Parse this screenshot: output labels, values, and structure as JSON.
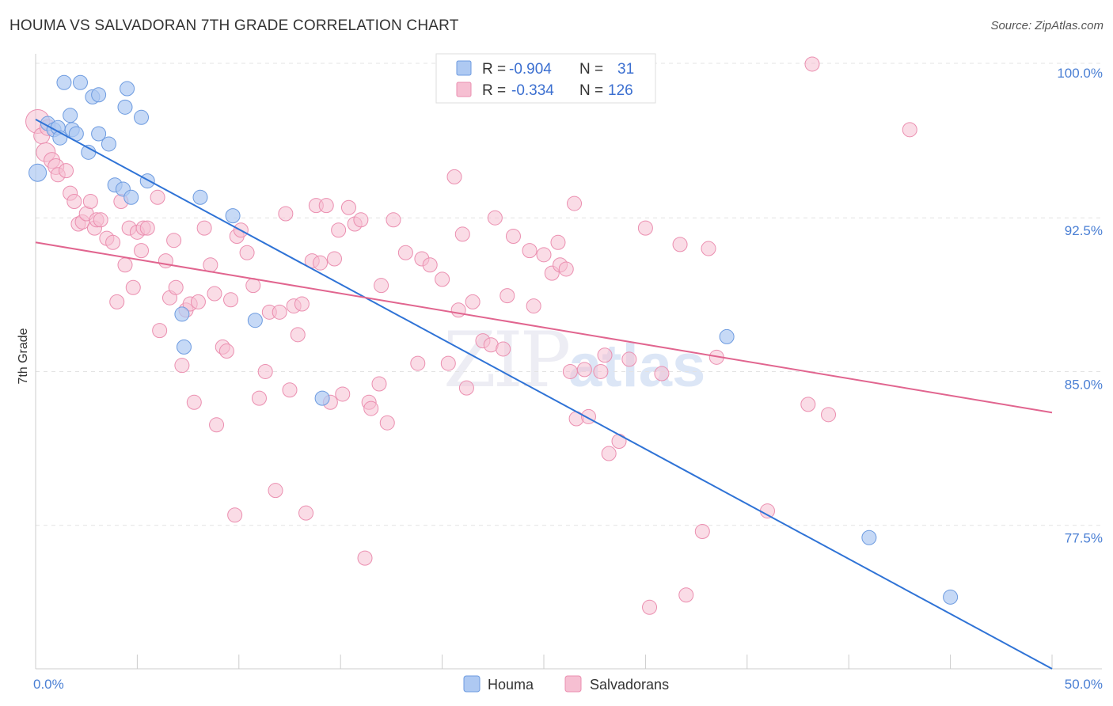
{
  "title": "HOUMA VS SALVADORAN 7TH GRADE CORRELATION CHART",
  "source": "Source: ZipAtlas.com",
  "colors": {
    "houma_fill": "#aec9f2",
    "houma_stroke": "#6d9be0",
    "houma_line": "#2f73d6",
    "salv_fill": "#f6bfd2",
    "salv_stroke": "#eb8fb0",
    "salv_line": "#e1658f",
    "tick_label": "#4a7fd4",
    "grid": "#e3e3e3"
  },
  "legend": {
    "rows": [
      {
        "r_label": "R =",
        "r_value": "-0.904",
        "n_label": "N =",
        "n_value": "31"
      },
      {
        "r_label": "R =",
        "r_value": "-0.334",
        "n_label": "N =",
        "n_value": "126"
      }
    ]
  },
  "bottom_legend": [
    "Houma",
    "Salvadorans"
  ],
  "chart_data": {
    "type": "scatter",
    "title": "HOUMA VS SALVADORAN 7TH GRADE CORRELATION CHART",
    "xlabel": "",
    "ylabel": "7th Grade",
    "xlim": [
      0,
      50
    ],
    "ylim": [
      70.5,
      100.5
    ],
    "x_tick_labels": [
      "0.0%",
      "50.0%"
    ],
    "y_ticks": [
      77.5,
      85.0,
      92.5,
      100.0
    ],
    "y_tick_labels": [
      "77.5%",
      "85.0%",
      "92.5%",
      "100.0%"
    ],
    "grid": true,
    "legend_position": "top-center",
    "series": [
      {
        "name": "Houma",
        "r": -0.904,
        "n": 31,
        "trend": [
          [
            0,
            97.3
          ],
          [
            50,
            70.5
          ]
        ],
        "points": [
          [
            0.1,
            94.7
          ],
          [
            0.6,
            97.1
          ],
          [
            0.9,
            96.8
          ],
          [
            1.1,
            96.9
          ],
          [
            1.2,
            96.4
          ],
          [
            1.4,
            99.1
          ],
          [
            1.7,
            97.5
          ],
          [
            1.8,
            96.8
          ],
          [
            2.0,
            96.6
          ],
          [
            2.2,
            99.1
          ],
          [
            2.6,
            95.7
          ],
          [
            2.8,
            98.4
          ],
          [
            3.1,
            98.5
          ],
          [
            3.1,
            96.6
          ],
          [
            3.6,
            96.1
          ],
          [
            3.9,
            94.1
          ],
          [
            4.3,
            93.9
          ],
          [
            4.4,
            97.9
          ],
          [
            4.5,
            98.8
          ],
          [
            4.7,
            93.5
          ],
          [
            5.2,
            97.4
          ],
          [
            5.5,
            94.3
          ],
          [
            7.2,
            87.8
          ],
          [
            7.3,
            86.2
          ],
          [
            8.1,
            93.5
          ],
          [
            9.7,
            92.6
          ],
          [
            10.8,
            87.5
          ],
          [
            14.1,
            83.7
          ],
          [
            34.0,
            86.7
          ],
          [
            41.0,
            76.9
          ],
          [
            45.0,
            74.0
          ]
        ]
      },
      {
        "name": "Salvadorans",
        "r": -0.334,
        "n": 126,
        "trend": [
          [
            0,
            91.3
          ],
          [
            50,
            83.0
          ]
        ],
        "points": [
          [
            0.1,
            97.2
          ],
          [
            0.3,
            96.5
          ],
          [
            0.5,
            95.7
          ],
          [
            0.6,
            96.9
          ],
          [
            0.8,
            95.3
          ],
          [
            1.0,
            95.0
          ],
          [
            1.1,
            94.6
          ],
          [
            1.5,
            94.8
          ],
          [
            1.7,
            93.7
          ],
          [
            1.9,
            93.3
          ],
          [
            2.1,
            92.2
          ],
          [
            2.3,
            92.3
          ],
          [
            2.5,
            92.7
          ],
          [
            2.7,
            93.3
          ],
          [
            2.9,
            92.0
          ],
          [
            3.0,
            92.4
          ],
          [
            3.2,
            92.4
          ],
          [
            3.5,
            91.5
          ],
          [
            3.8,
            91.3
          ],
          [
            4.0,
            88.4
          ],
          [
            4.2,
            93.3
          ],
          [
            4.4,
            90.2
          ],
          [
            4.6,
            92.0
          ],
          [
            4.8,
            89.1
          ],
          [
            5.0,
            91.8
          ],
          [
            5.2,
            90.9
          ],
          [
            5.3,
            92.0
          ],
          [
            5.5,
            92.0
          ],
          [
            6.0,
            93.5
          ],
          [
            6.1,
            87.0
          ],
          [
            6.4,
            90.4
          ],
          [
            6.6,
            88.6
          ],
          [
            6.8,
            91.4
          ],
          [
            6.9,
            89.1
          ],
          [
            7.2,
            85.3
          ],
          [
            7.4,
            88.0
          ],
          [
            7.6,
            88.3
          ],
          [
            7.8,
            83.5
          ],
          [
            8.0,
            88.4
          ],
          [
            8.3,
            92.0
          ],
          [
            8.6,
            90.2
          ],
          [
            8.8,
            88.8
          ],
          [
            8.9,
            82.4
          ],
          [
            9.2,
            86.2
          ],
          [
            9.4,
            86.0
          ],
          [
            9.6,
            88.5
          ],
          [
            9.8,
            78.0
          ],
          [
            9.9,
            91.6
          ],
          [
            10.1,
            91.9
          ],
          [
            10.4,
            90.8
          ],
          [
            10.7,
            89.2
          ],
          [
            11.0,
            83.7
          ],
          [
            11.3,
            85.0
          ],
          [
            11.5,
            87.9
          ],
          [
            11.8,
            79.2
          ],
          [
            12.0,
            87.9
          ],
          [
            12.3,
            92.7
          ],
          [
            12.5,
            84.1
          ],
          [
            12.7,
            88.2
          ],
          [
            12.9,
            86.8
          ],
          [
            13.1,
            88.3
          ],
          [
            13.3,
            78.1
          ],
          [
            13.6,
            90.4
          ],
          [
            13.8,
            93.1
          ],
          [
            14.0,
            90.3
          ],
          [
            14.3,
            93.1
          ],
          [
            14.5,
            83.5
          ],
          [
            14.7,
            90.5
          ],
          [
            14.9,
            91.9
          ],
          [
            15.1,
            83.9
          ],
          [
            15.4,
            93.0
          ],
          [
            15.7,
            92.2
          ],
          [
            16.0,
            92.4
          ],
          [
            16.2,
            75.9
          ],
          [
            16.4,
            83.5
          ],
          [
            16.5,
            83.2
          ],
          [
            16.9,
            84.4
          ],
          [
            17.0,
            89.2
          ],
          [
            17.3,
            82.5
          ],
          [
            17.6,
            92.4
          ],
          [
            18.2,
            90.8
          ],
          [
            18.8,
            85.4
          ],
          [
            19.0,
            90.5
          ],
          [
            19.4,
            90.2
          ],
          [
            20.0,
            89.5
          ],
          [
            20.3,
            85.4
          ],
          [
            20.6,
            94.5
          ],
          [
            20.8,
            88.0
          ],
          [
            21.0,
            91.7
          ],
          [
            21.2,
            84.2
          ],
          [
            21.5,
            88.4
          ],
          [
            22.0,
            86.5
          ],
          [
            22.4,
            86.3
          ],
          [
            22.6,
            92.5
          ],
          [
            23.0,
            86.1
          ],
          [
            23.2,
            88.7
          ],
          [
            23.5,
            91.6
          ],
          [
            24.3,
            90.9
          ],
          [
            24.5,
            88.2
          ],
          [
            25.0,
            90.7
          ],
          [
            25.4,
            89.8
          ],
          [
            25.7,
            91.3
          ],
          [
            25.8,
            90.2
          ],
          [
            26.1,
            90.0
          ],
          [
            27.0,
            85.1
          ],
          [
            27.8,
            85.0
          ],
          [
            26.3,
            85.0
          ],
          [
            26.5,
            93.2
          ],
          [
            26.6,
            82.7
          ],
          [
            28.0,
            85.8
          ],
          [
            27.2,
            82.8
          ],
          [
            28.2,
            81.0
          ],
          [
            28.7,
            81.6
          ],
          [
            29.2,
            85.6
          ],
          [
            30.0,
            92.0
          ],
          [
            30.8,
            84.9
          ],
          [
            30.2,
            73.5
          ],
          [
            31.7,
            91.2
          ],
          [
            32.0,
            74.1
          ],
          [
            32.8,
            77.2
          ],
          [
            33.1,
            91.0
          ],
          [
            33.5,
            85.7
          ],
          [
            36.0,
            78.2
          ],
          [
            38.0,
            83.4
          ],
          [
            38.2,
            100.0
          ],
          [
            39.0,
            82.9
          ],
          [
            43.0,
            96.8
          ]
        ]
      }
    ]
  }
}
